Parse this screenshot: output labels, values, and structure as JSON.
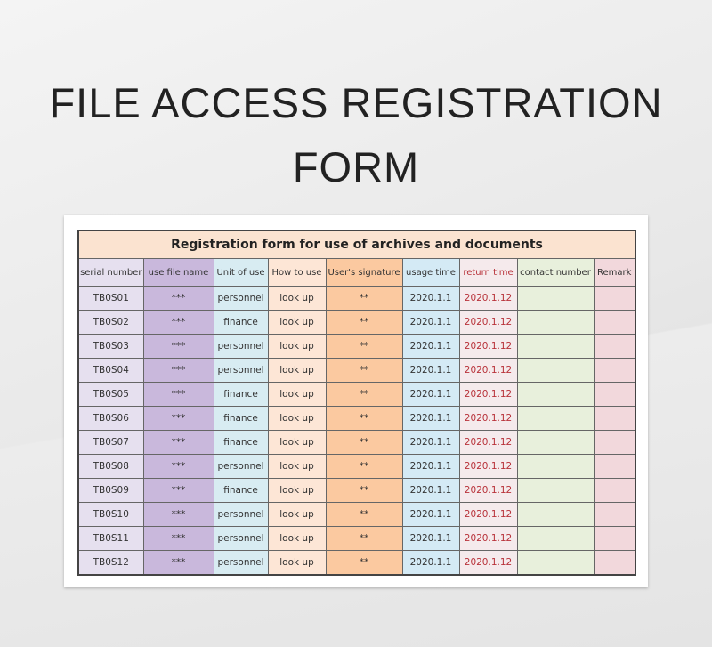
{
  "page_title_line1": "FILE ACCESS REGISTRATION",
  "page_title_line2": "FORM",
  "table": {
    "caption": "Registration form for use of archives and documents",
    "headers": [
      "serial number",
      "use file name",
      "Unit of use",
      "How to use",
      "User's signature",
      "usage time",
      "return time",
      "contact number",
      "Remark"
    ],
    "rows": [
      [
        "TB0S01",
        "***",
        "personnel",
        "look up",
        "**",
        "2020.1.1",
        "2020.1.12",
        "",
        ""
      ],
      [
        "TB0S02",
        "***",
        "finance",
        "look up",
        "**",
        "2020.1.1",
        "2020.1.12",
        "",
        ""
      ],
      [
        "TB0S03",
        "***",
        "personnel",
        "look up",
        "**",
        "2020.1.1",
        "2020.1.12",
        "",
        ""
      ],
      [
        "TB0S04",
        "***",
        "personnel",
        "look up",
        "**",
        "2020.1.1",
        "2020.1.12",
        "",
        ""
      ],
      [
        "TB0S05",
        "***",
        "finance",
        "look up",
        "**",
        "2020.1.1",
        "2020.1.12",
        "",
        ""
      ],
      [
        "TB0S06",
        "***",
        "finance",
        "look up",
        "**",
        "2020.1.1",
        "2020.1.12",
        "",
        ""
      ],
      [
        "TB0S07",
        "***",
        "finance",
        "look up",
        "**",
        "2020.1.1",
        "2020.1.12",
        "",
        ""
      ],
      [
        "TB0S08",
        "***",
        "personnel",
        "look up",
        "**",
        "2020.1.1",
        "2020.1.12",
        "",
        ""
      ],
      [
        "TB0S09",
        "***",
        "finance",
        "look up",
        "**",
        "2020.1.1",
        "2020.1.12",
        "",
        ""
      ],
      [
        "TB0S10",
        "***",
        "personnel",
        "look up",
        "**",
        "2020.1.1",
        "2020.1.12",
        "",
        ""
      ],
      [
        "TB0S11",
        "***",
        "personnel",
        "look up",
        "**",
        "2020.1.1",
        "2020.1.12",
        "",
        ""
      ],
      [
        "TB0S12",
        "***",
        "personnel",
        "look up",
        "**",
        "2020.1.1",
        "2020.1.12",
        "",
        ""
      ]
    ]
  },
  "colors": {
    "return_time_text": "#b8323a",
    "caption_bg": "#fbe3d0",
    "file_name_col": "#c9b8dc",
    "signature_col": "#fbc9a0"
  }
}
